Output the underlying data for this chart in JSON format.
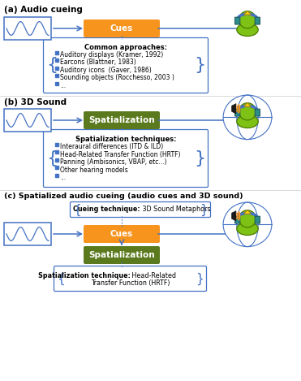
{
  "bg_color": "#ffffff",
  "section_a_label": "(a) Audio cueing",
  "section_b_label": "(b) 3D Sound",
  "section_c_label": "(c) Spatialized audio cueing (audio cues and 3D sound)",
  "cues_box_color": "#F7941D",
  "cues_box_text": "Cues",
  "spatialization_box_color": "#5B7A1E",
  "spatialization_box_text": "Spatialization",
  "arrow_color": "#4472C4",
  "common_approaches_title": "Common approaches:",
  "common_approaches_items": [
    "Auditory displays (Kramer, 1992)",
    "Earcons (Blattner, 1983)",
    "Auditory icons  (Gaver, 1986)",
    "Sounding objects (Rocchesso, 2003 )",
    "..."
  ],
  "spatialization_techniques_title": "Spatialization techniques:",
  "spatialization_techniques_items": [
    "Interaural differences (ITD & ILD)",
    "Head-Related Transfer Function (HRTF)",
    "Panning (Ambisonics, VBAP, etc...)",
    "Other hearing models",
    "..."
  ],
  "cueing_tech_bold": "Cueing technique:",
  "cueing_tech_normal": " 3D Sound Metaphors",
  "spat_tech_bold": "Spatialization technique:",
  "spat_tech_normal": " Head-Related\nTransfer Function (HRTF)",
  "box_text_color": "#ffffff",
  "section_label_color": "#000000",
  "border_box_color": "#4472C4",
  "text_color": "#000000",
  "green_head": "#7DC214",
  "green_head_edge": "#4E7A00",
  "teal_ear": "#2E8B8B",
  "teal_ear_edge": "#1C5555",
  "headphone_color": "#4472C4",
  "yellow_tri": "#FFD700",
  "yellow_tri_edge": "#B8860B",
  "speaker_body": "#1A1A1A",
  "speaker_cone": "#F7941D",
  "globe_color": "#4472C4"
}
